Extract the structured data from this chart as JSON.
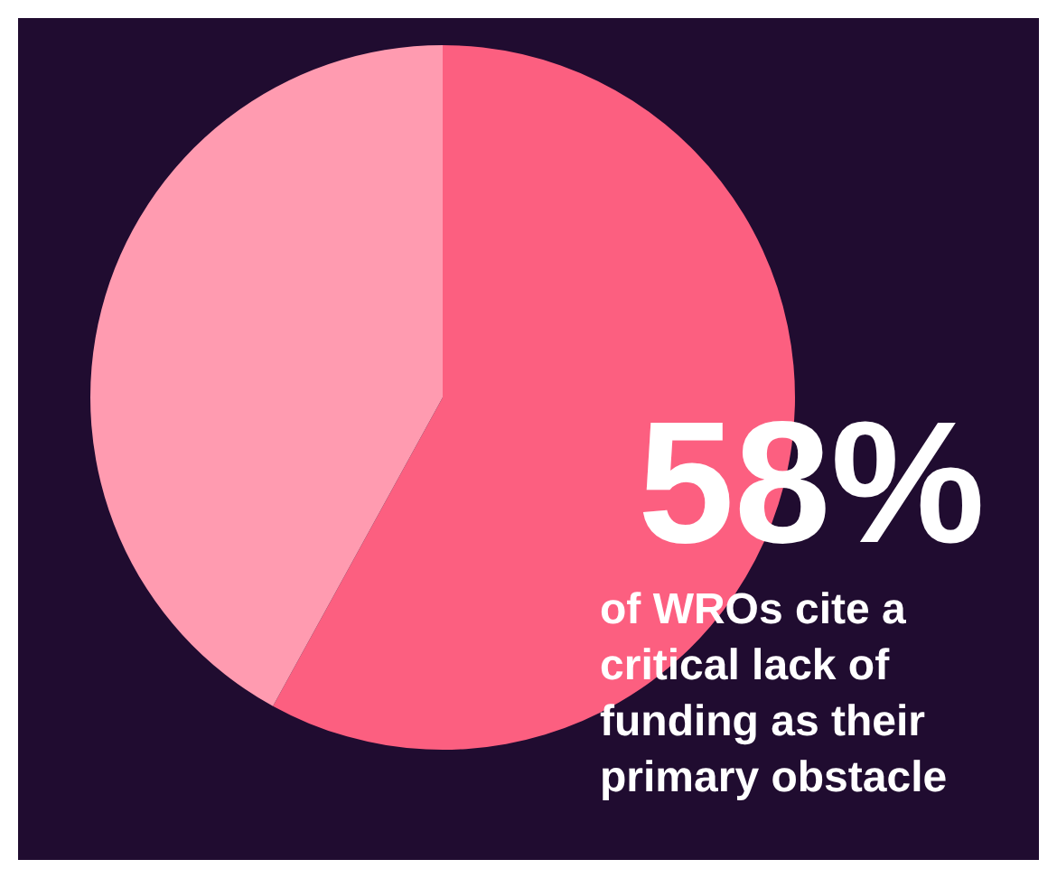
{
  "chart_data": {
    "type": "pie",
    "categories": [
      null,
      null
    ],
    "values": [
      58,
      42
    ],
    "colors": [
      "#fc5f80",
      "#ff9bb0"
    ],
    "value_labels": [
      "58%",
      null
    ],
    "annotations": [
      "of WROs cite a critical lack of funding as their primary obstacle"
    ]
  }
}
